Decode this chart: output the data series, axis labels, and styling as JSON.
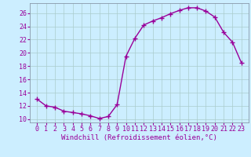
{
  "x": [
    0,
    1,
    2,
    3,
    4,
    5,
    6,
    7,
    8,
    9,
    10,
    11,
    12,
    13,
    14,
    15,
    16,
    17,
    18,
    19,
    20,
    21,
    22,
    23
  ],
  "y": [
    13.0,
    12.0,
    11.8,
    11.2,
    11.0,
    10.8,
    10.5,
    10.1,
    10.4,
    12.2,
    19.5,
    22.2,
    24.2,
    24.8,
    25.3,
    25.9,
    26.4,
    26.8,
    26.8,
    26.3,
    25.4,
    23.1,
    21.6,
    18.5
  ],
  "line_color": "#990099",
  "marker": "+",
  "markersize": 4,
  "linewidth": 1.0,
  "bg_color": "#cceeff",
  "grid_color": "#aacccc",
  "xlabel": "Windchill (Refroidissement éolien,°C)",
  "xlabel_color": "#990099",
  "tick_color": "#990099",
  "ylim": [
    9.5,
    27.5
  ],
  "yticks": [
    10,
    12,
    14,
    16,
    18,
    20,
    22,
    24,
    26
  ],
  "xticks": [
    0,
    1,
    2,
    3,
    4,
    5,
    6,
    7,
    8,
    9,
    10,
    11,
    12,
    13,
    14,
    15,
    16,
    17,
    18,
    19,
    20,
    21,
    22,
    23
  ],
  "xlabel_fontsize": 6.5,
  "tick_fontsize": 6.0
}
